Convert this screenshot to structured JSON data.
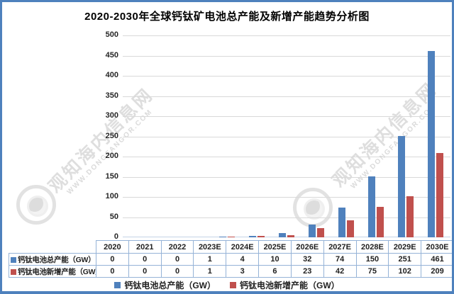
{
  "chart_data": {
    "type": "bar",
    "title": "2020-2030年全球钙钛矿电池总产能及新增产能趋势分析图",
    "categories": [
      "2020",
      "2021",
      "2022",
      "2023E",
      "2024E",
      "2025E",
      "2026E",
      "2027E",
      "2028E",
      "2029E",
      "2030E"
    ],
    "series": [
      {
        "name": "钙钛电池总产能（GW）",
        "color": "#4F81BD",
        "values": [
          0,
          0,
          0,
          1,
          4,
          10,
          32,
          74,
          150,
          251,
          461
        ]
      },
      {
        "name": "钙钛电池新增产能（GW）",
        "color": "#C0504D",
        "values": [
          0,
          0,
          0,
          1,
          3,
          6,
          23,
          42,
          75,
          102,
          209
        ]
      }
    ],
    "xlabel": "",
    "ylabel": "",
    "ylim": [
      0,
      500
    ],
    "ytick_interval": 50,
    "yticks": [
      0,
      50,
      100,
      150,
      200,
      250,
      300,
      350,
      400,
      450,
      500
    ],
    "grid": true,
    "legend_position": "bottom",
    "data_table_shown": true
  },
  "legend": {
    "items": [
      {
        "label": "钙钛电池总产能（GW）",
        "color": "#4F81BD"
      },
      {
        "label": "钙钛电池新增产能（GW）",
        "color": "#C0504D"
      }
    ]
  },
  "watermark": {
    "text": "观知海内信息网",
    "url": "WWW.DONGFANGOR.COM"
  },
  "colors": {
    "frame_border": "#4E81BD",
    "table_border": "#95B3D7",
    "gridline": "#D9D9D9",
    "text": "#1F1F1F",
    "background": "#FFFFFF"
  }
}
